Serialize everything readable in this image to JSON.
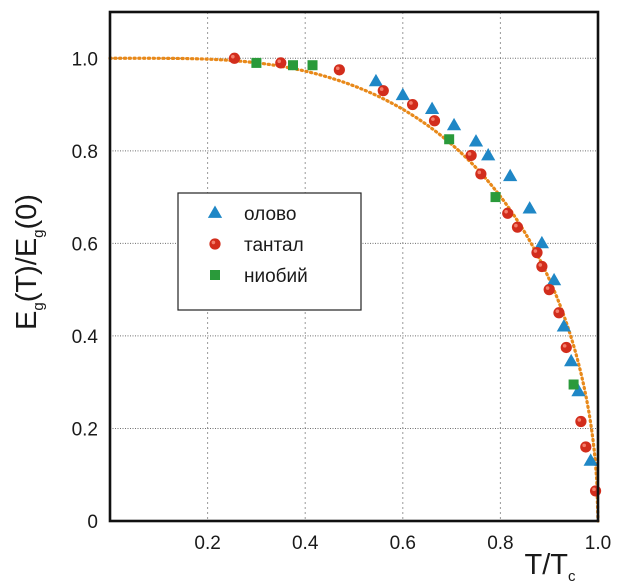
{
  "chart_data": {
    "type": "scatter",
    "xlabel": {
      "main": "T/T",
      "sub": "c"
    },
    "ylabel": {
      "p1": "E",
      "s1": "g",
      "p2": "(T)/E",
      "s2": "g",
      "p3": "(0)"
    },
    "xlim": [
      0,
      1.0
    ],
    "ylim": [
      0,
      1.1
    ],
    "x_ticks": [
      {
        "value": 0.2,
        "label": "0.2"
      },
      {
        "value": 0.4,
        "label": "0.4"
      },
      {
        "value": 0.6,
        "label": "0.6"
      },
      {
        "value": 0.8,
        "label": "0.8"
      },
      {
        "value": 1.0,
        "label": "1.0"
      }
    ],
    "y_ticks": [
      {
        "value": 0,
        "label": "0"
      },
      {
        "value": 0.2,
        "label": "0.2"
      },
      {
        "value": 0.4,
        "label": "0.4"
      },
      {
        "value": 0.6,
        "label": "0.6"
      },
      {
        "value": 0.8,
        "label": "0.8"
      },
      {
        "value": 1.0,
        "label": "1.0"
      }
    ],
    "grid": true,
    "legend_position": "center-left",
    "series": [
      {
        "name": "олово",
        "marker": "triangle",
        "color": "#1f87c6",
        "points": [
          [
            0.545,
            0.95
          ],
          [
            0.6,
            0.92
          ],
          [
            0.66,
            0.89
          ],
          [
            0.705,
            0.855
          ],
          [
            0.75,
            0.82
          ],
          [
            0.775,
            0.79
          ],
          [
            0.82,
            0.745
          ],
          [
            0.86,
            0.675
          ],
          [
            0.885,
            0.6
          ],
          [
            0.91,
            0.52
          ],
          [
            0.93,
            0.42
          ],
          [
            0.945,
            0.345
          ],
          [
            0.96,
            0.28
          ],
          [
            0.985,
            0.13
          ]
        ]
      },
      {
        "name": "тантал",
        "marker": "circle",
        "color": "#d22d1c",
        "points": [
          [
            0.255,
            1.0
          ],
          [
            0.35,
            0.99
          ],
          [
            0.47,
            0.975
          ],
          [
            0.56,
            0.93
          ],
          [
            0.62,
            0.9
          ],
          [
            0.665,
            0.865
          ],
          [
            0.74,
            0.79
          ],
          [
            0.76,
            0.75
          ],
          [
            0.815,
            0.665
          ],
          [
            0.835,
            0.635
          ],
          [
            0.875,
            0.58
          ],
          [
            0.885,
            0.55
          ],
          [
            0.9,
            0.5
          ],
          [
            0.92,
            0.45
          ],
          [
            0.935,
            0.375
          ],
          [
            0.965,
            0.215
          ],
          [
            0.975,
            0.16
          ],
          [
            0.995,
            0.065
          ]
        ]
      },
      {
        "name": "ниобий",
        "marker": "square",
        "color": "#2a9a3a",
        "points": [
          [
            0.3,
            0.99
          ],
          [
            0.375,
            0.985
          ],
          [
            0.415,
            0.985
          ],
          [
            0.695,
            0.825
          ],
          [
            0.79,
            0.7
          ],
          [
            0.95,
            0.295
          ]
        ]
      }
    ],
    "fit_curve": {
      "style": "dotted",
      "color": "#e8891a"
    }
  }
}
